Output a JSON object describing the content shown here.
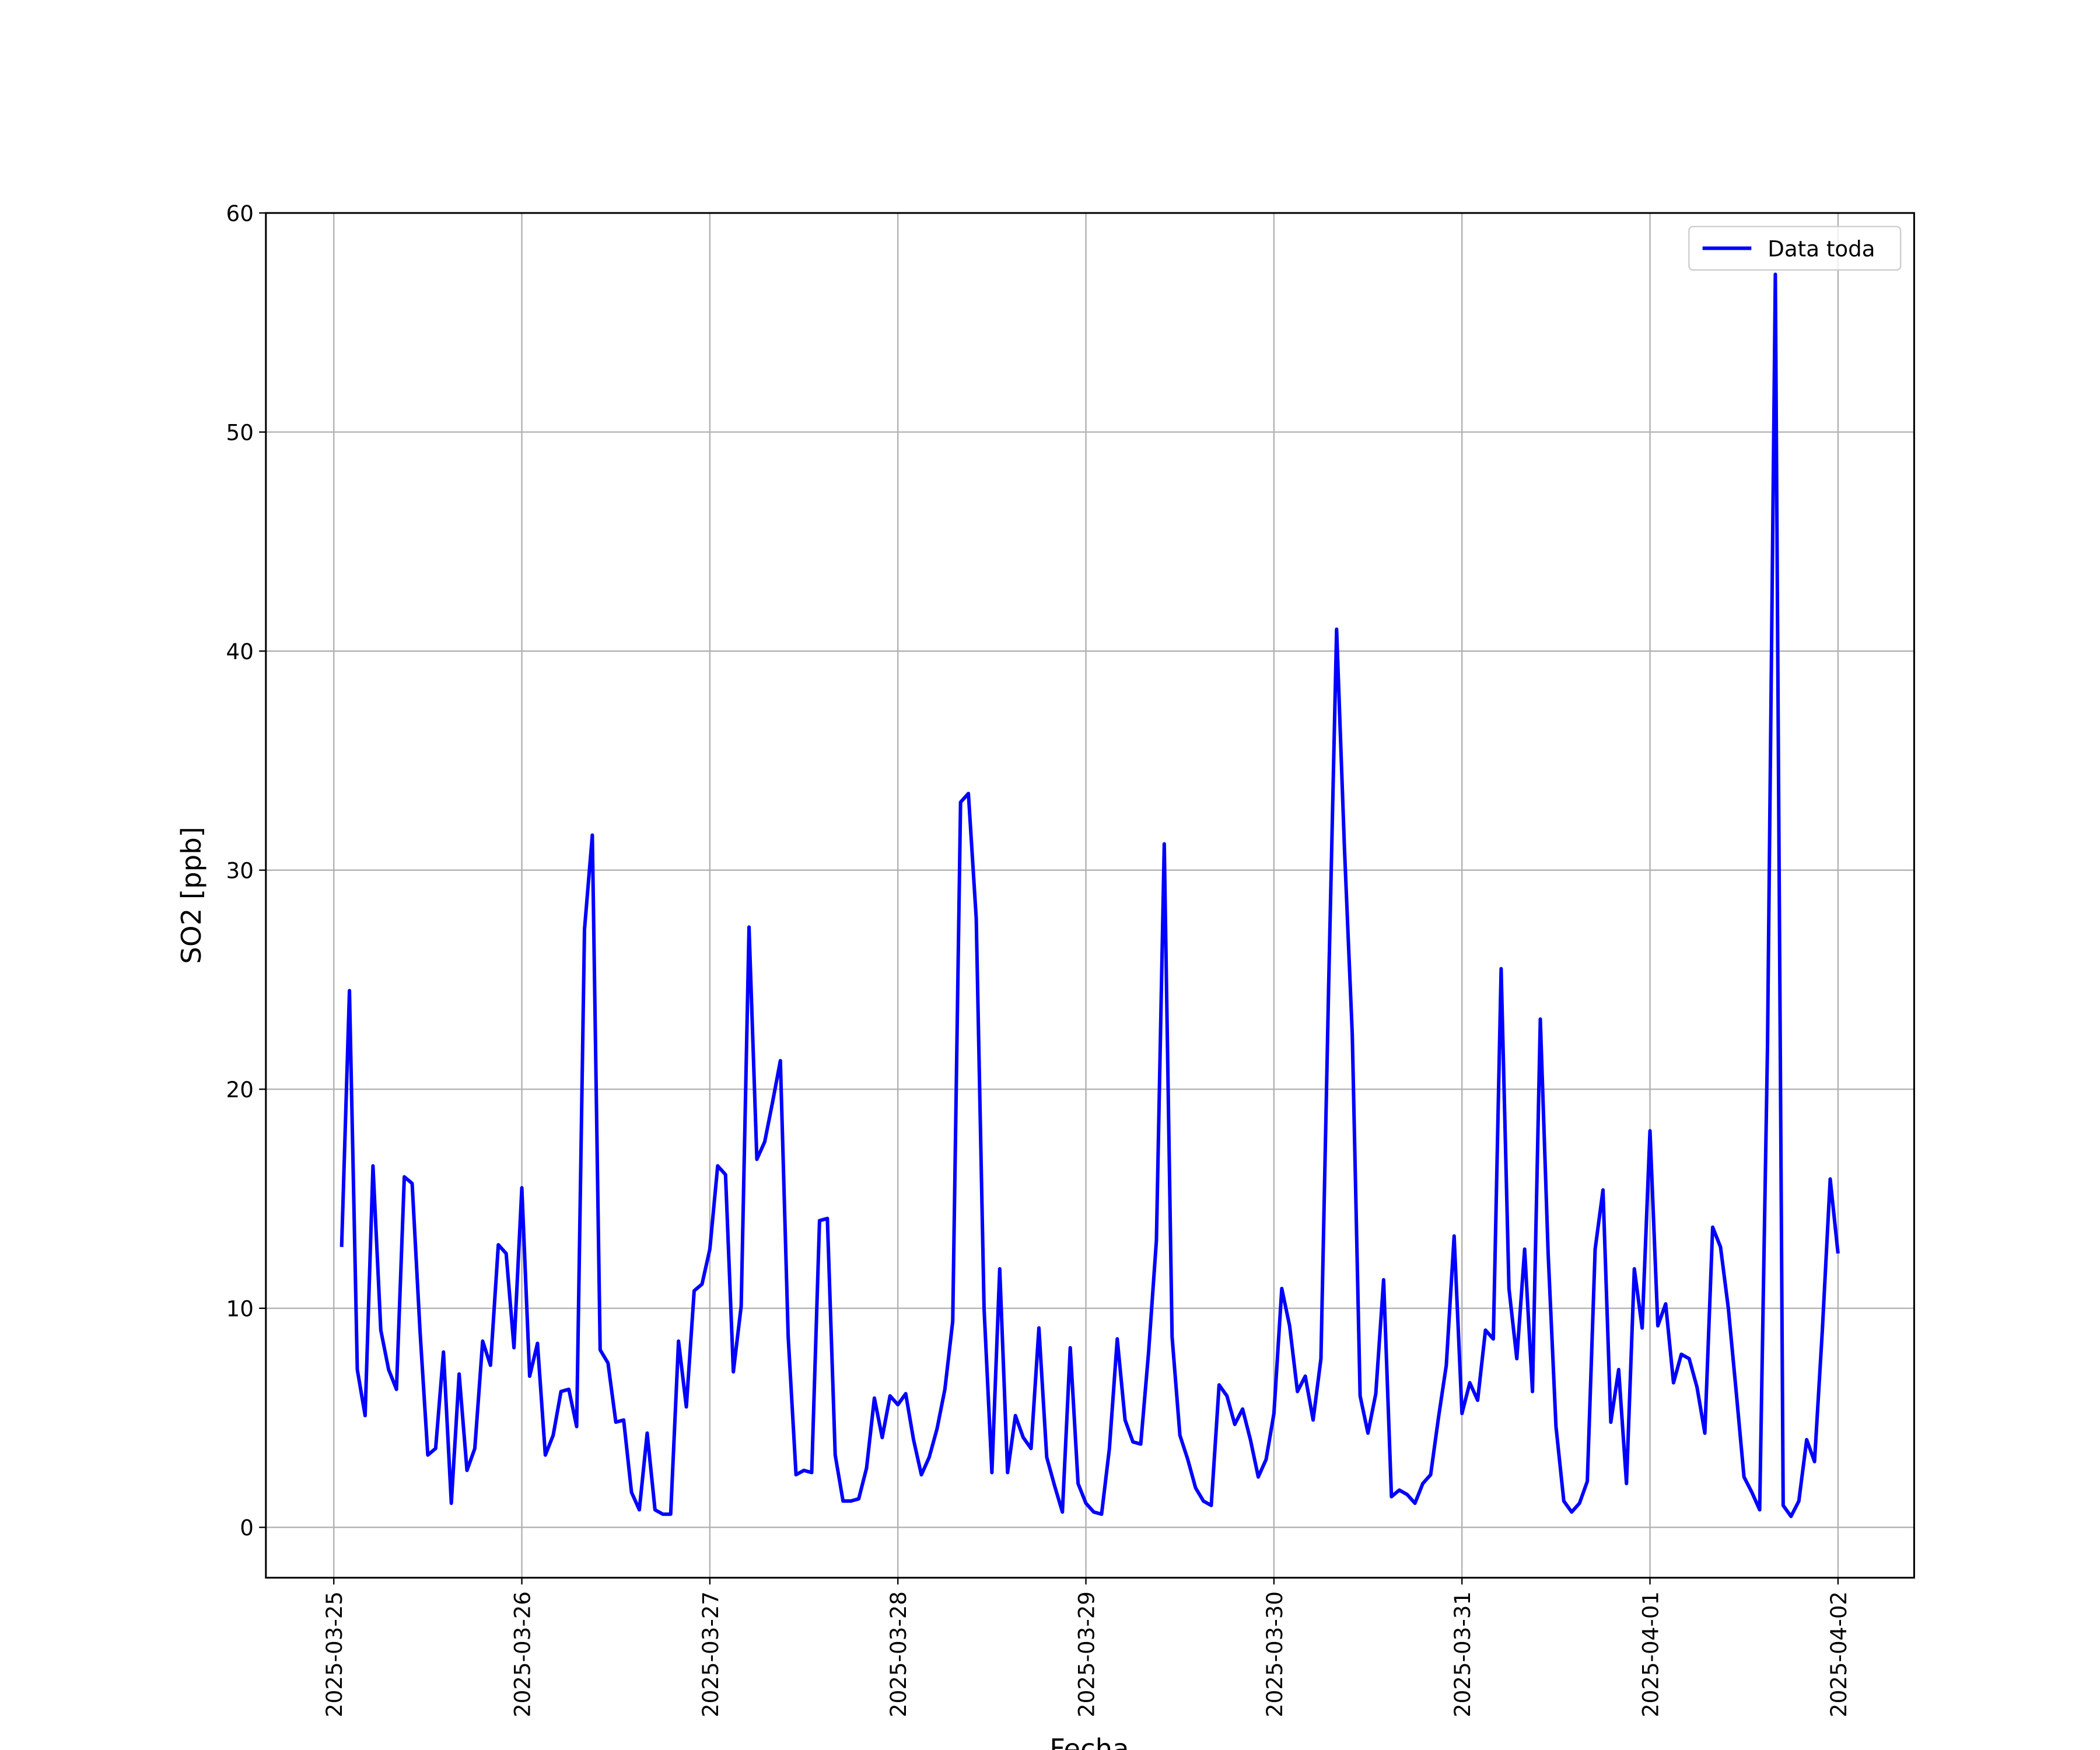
{
  "chart_data": {
    "type": "line",
    "xlabel": "Fecha",
    "ylabel": "SO2 [ppb]",
    "x": [
      "2025-03-25 01:00",
      "2025-03-25 02:00",
      "2025-03-25 03:00",
      "2025-03-25 04:00",
      "2025-03-25 05:00",
      "2025-03-25 06:00",
      "2025-03-25 07:00",
      "2025-03-25 08:00",
      "2025-03-25 09:00",
      "2025-03-25 10:00",
      "2025-03-25 11:00",
      "2025-03-25 12:00",
      "2025-03-25 13:00",
      "2025-03-25 14:00",
      "2025-03-25 15:00",
      "2025-03-25 16:00",
      "2025-03-25 17:00",
      "2025-03-25 18:00",
      "2025-03-25 19:00",
      "2025-03-25 20:00",
      "2025-03-25 21:00",
      "2025-03-25 22:00",
      "2025-03-25 23:00",
      "2025-03-26 00:00",
      "2025-03-26 01:00",
      "2025-03-26 02:00",
      "2025-03-26 03:00",
      "2025-03-26 04:00",
      "2025-03-26 05:00",
      "2025-03-26 06:00",
      "2025-03-26 07:00",
      "2025-03-26 08:00",
      "2025-03-26 09:00",
      "2025-03-26 10:00",
      "2025-03-26 11:00",
      "2025-03-26 12:00",
      "2025-03-26 13:00",
      "2025-03-26 14:00",
      "2025-03-26 15:00",
      "2025-03-26 16:00",
      "2025-03-26 17:00",
      "2025-03-26 18:00",
      "2025-03-26 19:00",
      "2025-03-26 20:00",
      "2025-03-26 21:00",
      "2025-03-26 22:00",
      "2025-03-26 23:00",
      "2025-03-27 00:00",
      "2025-03-27 01:00",
      "2025-03-27 02:00",
      "2025-03-27 03:00",
      "2025-03-27 04:00",
      "2025-03-27 05:00",
      "2025-03-27 06:00",
      "2025-03-27 07:00",
      "2025-03-27 08:00",
      "2025-03-27 09:00",
      "2025-03-27 10:00",
      "2025-03-27 11:00",
      "2025-03-27 12:00",
      "2025-03-27 13:00",
      "2025-03-27 14:00",
      "2025-03-27 15:00",
      "2025-03-27 16:00",
      "2025-03-27 17:00",
      "2025-03-27 18:00",
      "2025-03-27 19:00",
      "2025-03-27 20:00",
      "2025-03-27 21:00",
      "2025-03-27 22:00",
      "2025-03-27 23:00",
      "2025-03-28 00:00",
      "2025-03-28 01:00",
      "2025-03-28 02:00",
      "2025-03-28 03:00",
      "2025-03-28 04:00",
      "2025-03-28 05:00",
      "2025-03-28 06:00",
      "2025-03-28 07:00",
      "2025-03-28 08:00",
      "2025-03-28 09:00",
      "2025-03-28 10:00",
      "2025-03-28 11:00",
      "2025-03-28 12:00",
      "2025-03-28 13:00",
      "2025-03-28 14:00",
      "2025-03-28 15:00",
      "2025-03-28 16:00",
      "2025-03-28 17:00",
      "2025-03-28 18:00",
      "2025-03-28 19:00",
      "2025-03-28 20:00",
      "2025-03-28 21:00",
      "2025-03-28 22:00",
      "2025-03-28 23:00",
      "2025-03-29 00:00",
      "2025-03-29 01:00",
      "2025-03-29 02:00",
      "2025-03-29 03:00",
      "2025-03-29 04:00",
      "2025-03-29 05:00",
      "2025-03-29 06:00",
      "2025-03-29 07:00",
      "2025-03-29 08:00",
      "2025-03-29 09:00",
      "2025-03-29 10:00",
      "2025-03-29 11:00",
      "2025-03-29 12:00",
      "2025-03-29 13:00",
      "2025-03-29 14:00",
      "2025-03-29 15:00",
      "2025-03-29 16:00",
      "2025-03-29 17:00",
      "2025-03-29 18:00",
      "2025-03-29 19:00",
      "2025-03-29 20:00",
      "2025-03-29 21:00",
      "2025-03-29 22:00",
      "2025-03-29 23:00",
      "2025-03-30 00:00",
      "2025-03-30 01:00",
      "2025-03-30 02:00",
      "2025-03-30 03:00",
      "2025-03-30 04:00",
      "2025-03-30 05:00",
      "2025-03-30 06:00",
      "2025-03-30 07:00",
      "2025-03-30 08:00",
      "2025-03-30 09:00",
      "2025-03-30 10:00",
      "2025-03-30 11:00",
      "2025-03-30 12:00",
      "2025-03-30 13:00",
      "2025-03-30 14:00",
      "2025-03-30 15:00",
      "2025-03-30 16:00",
      "2025-03-30 17:00",
      "2025-03-30 18:00",
      "2025-03-30 19:00",
      "2025-03-30 20:00",
      "2025-03-30 21:00",
      "2025-03-30 22:00",
      "2025-03-30 23:00",
      "2025-03-31 00:00",
      "2025-03-31 01:00",
      "2025-03-31 02:00",
      "2025-03-31 03:00",
      "2025-03-31 04:00",
      "2025-03-31 05:00",
      "2025-03-31 06:00",
      "2025-03-31 07:00",
      "2025-03-31 08:00",
      "2025-03-31 09:00",
      "2025-03-31 10:00",
      "2025-03-31 11:00",
      "2025-03-31 12:00",
      "2025-03-31 13:00",
      "2025-03-31 14:00",
      "2025-03-31 15:00",
      "2025-03-31 16:00",
      "2025-03-31 17:00",
      "2025-03-31 18:00",
      "2025-03-31 19:00",
      "2025-03-31 20:00",
      "2025-03-31 21:00",
      "2025-03-31 22:00",
      "2025-03-31 23:00",
      "2025-04-01 00:00",
      "2025-04-01 01:00",
      "2025-04-01 02:00",
      "2025-04-01 03:00",
      "2025-04-01 04:00",
      "2025-04-01 05:00",
      "2025-04-01 06:00",
      "2025-04-01 07:00",
      "2025-04-01 08:00",
      "2025-04-01 09:00",
      "2025-04-01 10:00",
      "2025-04-01 11:00",
      "2025-04-01 12:00",
      "2025-04-01 13:00",
      "2025-04-01 14:00",
      "2025-04-01 15:00",
      "2025-04-01 16:00",
      "2025-04-01 17:00",
      "2025-04-01 18:00",
      "2025-04-01 19:00",
      "2025-04-01 20:00",
      "2025-04-01 21:00",
      "2025-04-01 22:00",
      "2025-04-01 23:00",
      "2025-04-02 00:00"
    ],
    "series": [
      {
        "name": "Data toda",
        "color": "#0000ff",
        "values": [
          12.8,
          24.5,
          7.2,
          5.1,
          16.5,
          9,
          7.2,
          6.3,
          16,
          15.7,
          9,
          3.3,
          3.6,
          8,
          1.1,
          7,
          2.6,
          3.6,
          8.5,
          7.4,
          12.9,
          12.5,
          8.2,
          15.5,
          6.9,
          8.4,
          3.3,
          4.2,
          6.2,
          6.3,
          4.6,
          27.3,
          31.6,
          8.1,
          7.5,
          4.8,
          4.9,
          1.6,
          0.8,
          4.3,
          0.8,
          0.6,
          0.6,
          8.5,
          5.5,
          10.8,
          11.1,
          12.7,
          16.5,
          16.1,
          7.1,
          10.1,
          27.4,
          16.8,
          17.6,
          19.4,
          21.3,
          8.7,
          2.4,
          2.6,
          2.5,
          14,
          14.1,
          3.3,
          1.2,
          1.2,
          1.3,
          2.7,
          5.9,
          4.1,
          6,
          5.6,
          6.1,
          4,
          2.4,
          3.2,
          4.5,
          6.3,
          9.4,
          33.1,
          33.5,
          27.8,
          10,
          2.5,
          11.8,
          2.5,
          5.1,
          4.1,
          3.6,
          9.1,
          3.2,
          1.9,
          0.7,
          8.2,
          2,
          1.1,
          0.7,
          0.6,
          3.6,
          8.6,
          4.9,
          3.9,
          3.8,
          8,
          13.1,
          31.2,
          8.7,
          4.2,
          3.1,
          1.8,
          1.2,
          1,
          6.5,
          6,
          4.7,
          5.4,
          4,
          2.3,
          3.1,
          5.2,
          10.9,
          9.2,
          6.2,
          6.9,
          4.9,
          7.7,
          25,
          41,
          31,
          22.5,
          6,
          4.3,
          6.1,
          11.3,
          1.4,
          1.7,
          1.5,
          1.1,
          2,
          2.4,
          5,
          7.4,
          13.3,
          5.2,
          6.6,
          5.8,
          9,
          8.6,
          25.5,
          10.9,
          7.7,
          12.7,
          6.2,
          23.2,
          12.5,
          4.6,
          1.2,
          0.7,
          1.1,
          2.1,
          12.7,
          15.4,
          4.8,
          7.2,
          2,
          11.8,
          9.1,
          18.1,
          9.2,
          10.2,
          6.6,
          7.9,
          7.7,
          6.4,
          4.3,
          13.7,
          12.8,
          10,
          6.2,
          2.3,
          1.6,
          0.8,
          22,
          57.2,
          1,
          0.5,
          1.2,
          4,
          3,
          9,
          15.9,
          12.5
        ]
      }
    ],
    "xlim": [
      "2025-03-24 15:20",
      "2025-04-02 09:43"
    ],
    "xticks": [
      "2025-03-25",
      "2025-03-26",
      "2025-03-27",
      "2025-03-28",
      "2025-03-29",
      "2025-03-30",
      "2025-03-31",
      "2025-04-01",
      "2025-04-02"
    ],
    "ylim": [
      -2.3,
      60
    ],
    "yticks": [
      0,
      10,
      20,
      30,
      40,
      50,
      60
    ],
    "grid": true,
    "legend": "upper right"
  }
}
